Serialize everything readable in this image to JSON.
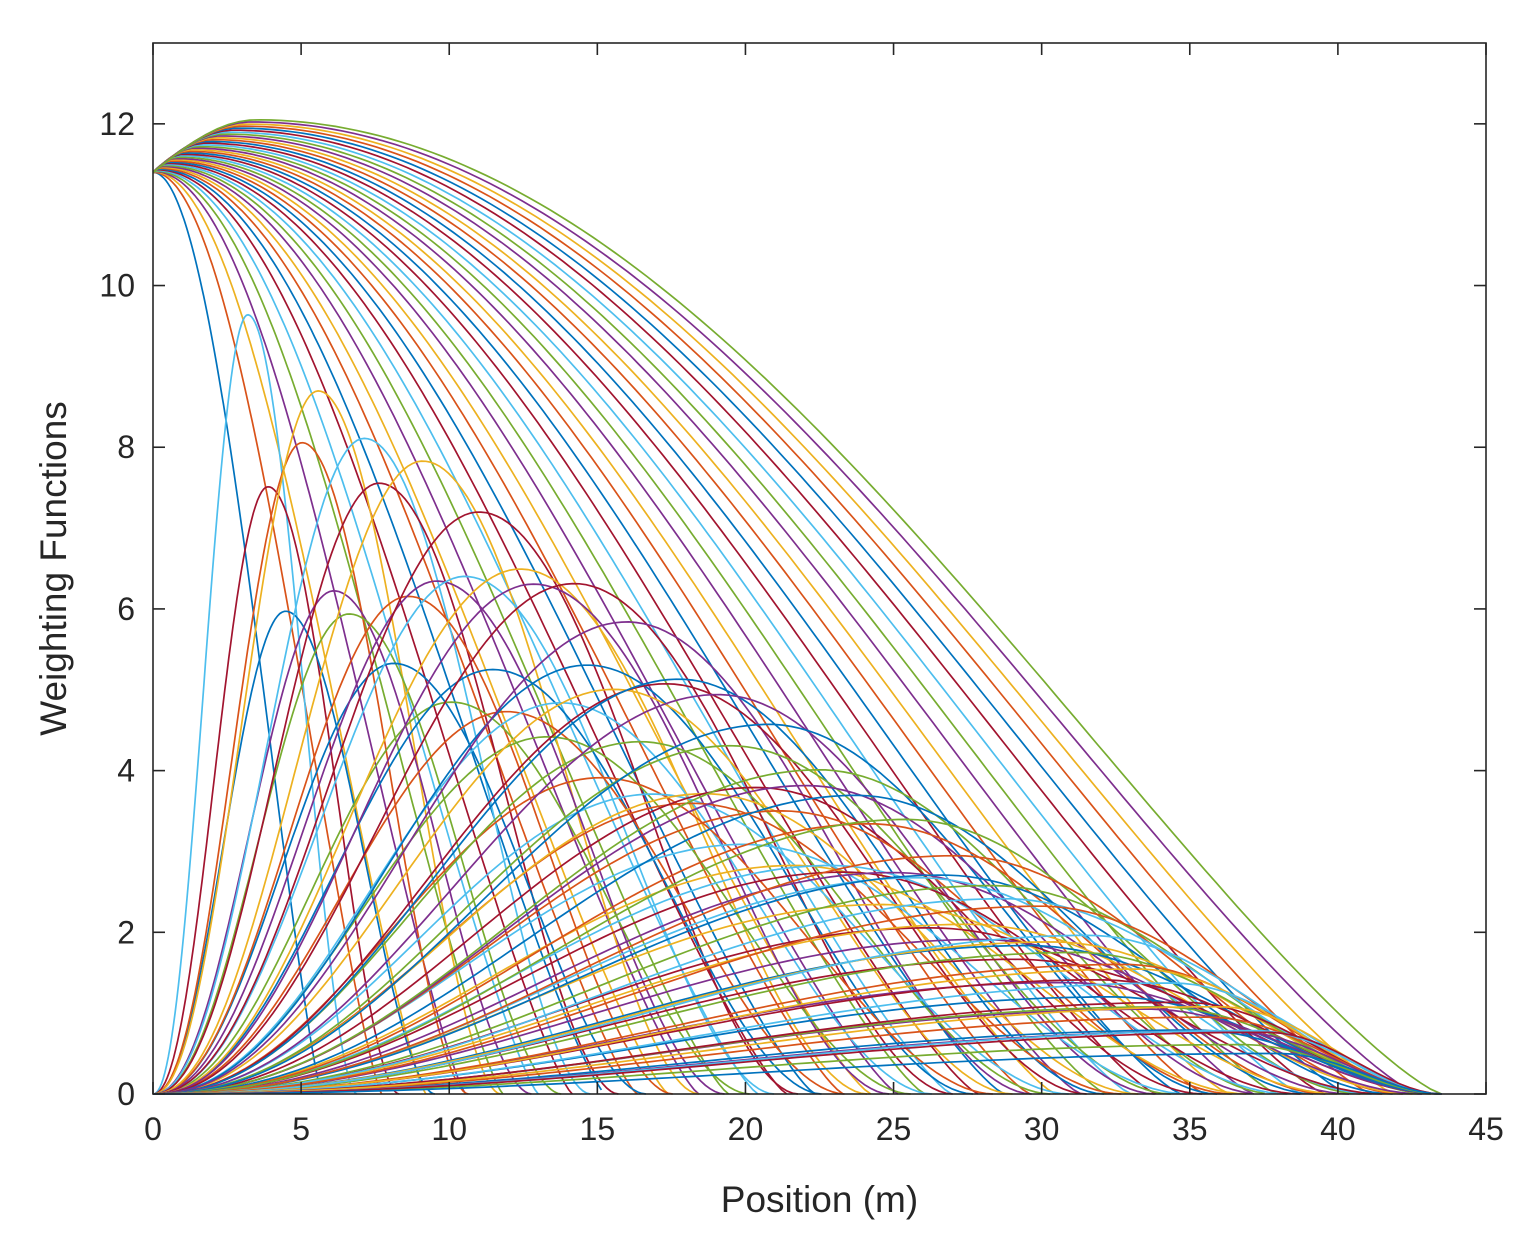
{
  "chart_data": {
    "type": "line",
    "title": "",
    "xlabel": "Position (m)",
    "ylabel": "Weighting Functions",
    "xlim": [
      0,
      45
    ],
    "ylim": [
      0,
      13
    ],
    "xticks": [
      0,
      5,
      10,
      15,
      20,
      25,
      30,
      35,
      40,
      45
    ],
    "yticks": [
      0,
      2,
      4,
      6,
      8,
      10,
      12
    ],
    "grid": false,
    "legend": "none",
    "series_count": 120,
    "end_x": 43.5,
    "start_value_at_origin": 11.4,
    "max_value": 12.05,
    "colors": [
      "#0072bd",
      "#d95319",
      "#edb120",
      "#7e2f8e",
      "#77ac30",
      "#4dbeee",
      "#a2142f"
    ],
    "families": [
      {
        "description_free": true,
        "anchor_x": 0,
        "start_y": 11.4,
        "count": 40,
        "zero_x_min": 5.7,
        "zero_x_max": 43.5,
        "peak_x_min": 0,
        "peak_x_max": 3.5,
        "peak_y_max": 12.05
      },
      {
        "anchor_x": 0,
        "start_y": 0,
        "count": 80,
        "peak_x_min": 3.2,
        "peak_x_max": 38,
        "peak_y_min": 0.25,
        "peak_y_max": 9.7,
        "end_x_min": 5.7,
        "end_x_max": 43.5
      }
    ]
  }
}
